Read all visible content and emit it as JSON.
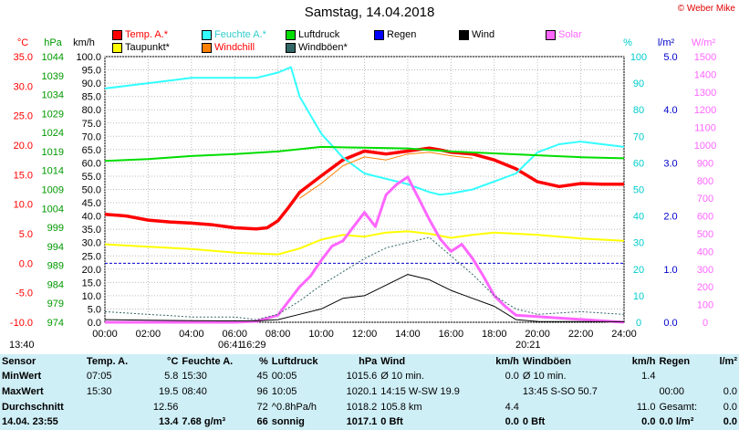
{
  "title": "Samstag, 14.04.2018",
  "copyright": "© Weber Mike",
  "legend": [
    {
      "label": "Temp. A.*",
      "color": "#ff0000"
    },
    {
      "label": "Feuchte A.*",
      "color": "#33ffff"
    },
    {
      "label": "Luftdruck",
      "color": "#00dd00"
    },
    {
      "label": "Regen",
      "color": "#0000ff"
    },
    {
      "label": "Wind",
      "color": "#000000"
    },
    {
      "label": "Solar",
      "color": "#ff66ff"
    },
    {
      "label": "Taupunkt*",
      "color": "#ffff00"
    },
    {
      "label": "Windchill",
      "color": "#ff8000"
    },
    {
      "label": "Windböen*",
      "color": "#336666"
    }
  ],
  "axis_units": {
    "temp": "°C",
    "pressure": "hPa",
    "wind": "km/h",
    "humidity": "%",
    "rain": "l/m²",
    "solar": "W/m²"
  },
  "chart_data": {
    "type": "line",
    "x_labels": [
      "00:00",
      "02:00",
      "04:00",
      "06:00",
      "08:00",
      "10:00",
      "12:00",
      "14:00",
      "16:00",
      "18:00",
      "20:00",
      "22:00",
      "24:00"
    ],
    "axes": {
      "temp_ticks": [
        "35.0",
        "30.0",
        "25.0",
        "20.0",
        "15.0",
        "10.0",
        "5.0",
        "0.0",
        "-5.0",
        "-10.0"
      ],
      "pressure_ticks": [
        "1044",
        "1039",
        "1034",
        "1029",
        "1024",
        "1019",
        "1014",
        "1009",
        "1004",
        "999",
        "994",
        "989",
        "984",
        "979",
        "974"
      ],
      "wind_ticks": [
        "100.0",
        "95.0",
        "90.0",
        "85.0",
        "80.0",
        "75.0",
        "70.0",
        "65.0",
        "60.0",
        "55.0",
        "50.0",
        "45.0",
        "40.0",
        "35.0",
        "30.0",
        "25.0",
        "20.0",
        "15.0",
        "10.0",
        "5.0",
        "0.0"
      ],
      "humidity_ticks": [
        "100",
        "90",
        "80",
        "70",
        "60",
        "50",
        "40",
        "30",
        "20",
        "10",
        "0"
      ],
      "rain_ticks": [
        "5.0",
        "4.0",
        "3.0",
        "2.0",
        "1.0",
        "0.0"
      ],
      "solar_ticks": [
        "1500",
        "1400",
        "1300",
        "1200",
        "1100",
        "1000",
        "900",
        "800",
        "700",
        "600",
        "500",
        "400",
        "300",
        "200",
        "100",
        "0"
      ]
    },
    "ranges": {
      "wind": [
        0,
        100
      ],
      "temp": [
        -10,
        35
      ],
      "pressure": [
        974,
        1044
      ],
      "humidity": [
        0,
        100
      ],
      "rain": [
        0,
        5
      ],
      "solar": [
        0,
        1500
      ]
    },
    "series": [
      {
        "name": "Temp. A.*",
        "axis": "temp",
        "color": "#ff0000",
        "x": [
          0,
          1,
          2,
          3,
          4,
          5,
          6,
          7,
          7.5,
          8,
          8.5,
          9,
          10,
          11,
          12,
          13,
          14,
          15,
          15.5,
          16,
          17,
          18,
          19,
          20,
          21,
          22,
          23,
          24
        ],
        "y": [
          8.3,
          8.0,
          7.3,
          7.0,
          6.8,
          6.5,
          6.0,
          5.8,
          6.0,
          7.2,
          9.5,
          12.0,
          14.8,
          17.5,
          19.0,
          18.5,
          19.0,
          19.5,
          19.2,
          18.8,
          18.5,
          17.5,
          16.0,
          13.8,
          13.0,
          13.5,
          13.4,
          13.4
        ]
      },
      {
        "name": "Feuchte A.*",
        "axis": "humidity",
        "color": "#33ffff",
        "x": [
          0,
          1,
          2,
          3,
          4,
          5,
          6,
          7,
          8,
          8.6,
          9,
          10,
          11,
          12,
          13,
          14,
          15,
          15.5,
          16,
          17,
          18,
          19,
          20,
          21,
          22,
          23,
          24
        ],
        "y": [
          88,
          89,
          90,
          91,
          92,
          92,
          92,
          92,
          94,
          96,
          85,
          71,
          62,
          56,
          54,
          52,
          49,
          48,
          48.5,
          50,
          53,
          56,
          64,
          67,
          68,
          67,
          66
        ]
      },
      {
        "name": "Luftdruck",
        "axis": "pressure",
        "color": "#00dd00",
        "x": [
          0,
          2,
          4,
          6,
          8,
          10,
          12,
          14,
          16,
          18,
          20,
          22,
          24
        ],
        "y": [
          1016.5,
          1017.0,
          1017.8,
          1018.3,
          1019.0,
          1020.2,
          1020.0,
          1019.8,
          1019.0,
          1018.5,
          1018.0,
          1017.5,
          1017.2
        ]
      },
      {
        "name": "Taupunkt*",
        "axis": "temp",
        "color": "#ffff00",
        "x": [
          0,
          2,
          4,
          6,
          8,
          9,
          10,
          11,
          12,
          13,
          14,
          15,
          16,
          17,
          18,
          20,
          22,
          24
        ],
        "y": [
          3.2,
          2.8,
          2.4,
          1.8,
          1.5,
          2.5,
          4.0,
          4.8,
          4.5,
          5.2,
          5.4,
          5.0,
          4.3,
          4.8,
          5.2,
          4.8,
          4.2,
          3.8
        ]
      },
      {
        "name": "Solar",
        "axis": "solar",
        "color": "#ff66ff",
        "x": [
          0,
          6,
          7,
          8,
          8.5,
          9,
          9.5,
          10,
          10.5,
          11,
          11.5,
          12,
          12.5,
          13,
          13.5,
          14,
          14.5,
          15,
          15.5,
          16,
          16.5,
          17,
          17.5,
          18,
          18.5,
          19,
          24
        ],
        "y": [
          0,
          0,
          5,
          40,
          120,
          200,
          260,
          350,
          430,
          460,
          540,
          620,
          540,
          720,
          780,
          820,
          700,
          580,
          470,
          400,
          440,
          360,
          260,
          150,
          90,
          40,
          0
        ]
      },
      {
        "name": "Wind",
        "axis": "wind",
        "color": "#000000",
        "x": [
          0,
          2,
          4,
          6,
          7,
          8,
          9,
          10,
          11,
          12,
          13,
          14,
          15,
          16,
          17,
          18,
          19,
          20,
          24
        ],
        "y": [
          1,
          0.8,
          0.6,
          0.5,
          0.5,
          1,
          3,
          5,
          9,
          10,
          14,
          18,
          16,
          12,
          9,
          6,
          1,
          0.3,
          0.2
        ]
      },
      {
        "name": "Windböen*",
        "axis": "wind",
        "color": "#336666",
        "x": [
          0,
          2,
          4,
          6,
          7,
          8,
          9,
          10,
          11,
          12,
          13,
          14,
          15,
          16,
          17,
          18,
          19,
          20,
          22,
          24
        ],
        "y": [
          4,
          3,
          2,
          2,
          1,
          3,
          8,
          14,
          19,
          24,
          28,
          30,
          32,
          25,
          18,
          10,
          5,
          3,
          4,
          3
        ]
      },
      {
        "name": "Windchill",
        "axis": "temp",
        "color": "#ff8000",
        "x": [
          9,
          10,
          11,
          12,
          13,
          14,
          15,
          16,
          17
        ],
        "y": [
          11.0,
          13.5,
          16.5,
          18.0,
          17.5,
          18.5,
          18.8,
          18.2,
          17.8
        ]
      }
    ]
  },
  "markers": {
    "sunrise": "06:41",
    "sunset": "20:21",
    "rise_alt": "16:29",
    "left_time": "13:40"
  },
  "stats": {
    "headers": [
      "Sensor",
      "Temp. A.",
      "°C",
      "Feuchte A.",
      "%",
      "Luftdruck",
      "hPa",
      "Wind",
      "km/h",
      "Windböen",
      "km/h",
      "Regen",
      "l/m²"
    ],
    "rows": [
      [
        "MinWert",
        "07:05",
        "5.8",
        "15:30",
        "45",
        "00:05",
        "1015.6",
        "Ø 10 min.",
        "0.0",
        "Ø 10 min.",
        "1.4",
        "",
        ""
      ],
      [
        "MaxWert",
        "15:30",
        "19.5",
        "08:40",
        "96",
        "10:05",
        "1020.1",
        "14:15  W-SW 19.9",
        "",
        "13:45  S-SO 50.7",
        "",
        "00:00",
        "0.0"
      ],
      [
        "Durchschnitt",
        "",
        "12.56",
        "",
        "72",
        "^0.8hPa/h",
        "1018.2",
        "105.8 km",
        "4.4",
        "",
        "11.0",
        "Gesamt:",
        "0.0"
      ],
      [
        "14.04. 23:55",
        "",
        "13.4",
        "7.68 g/m³",
        "66",
        "sonnig",
        "1017.1",
        "0 Bft",
        "0.0",
        "0 Bft",
        "0.0",
        "0.0 l/m²",
        "0.0"
      ]
    ]
  }
}
